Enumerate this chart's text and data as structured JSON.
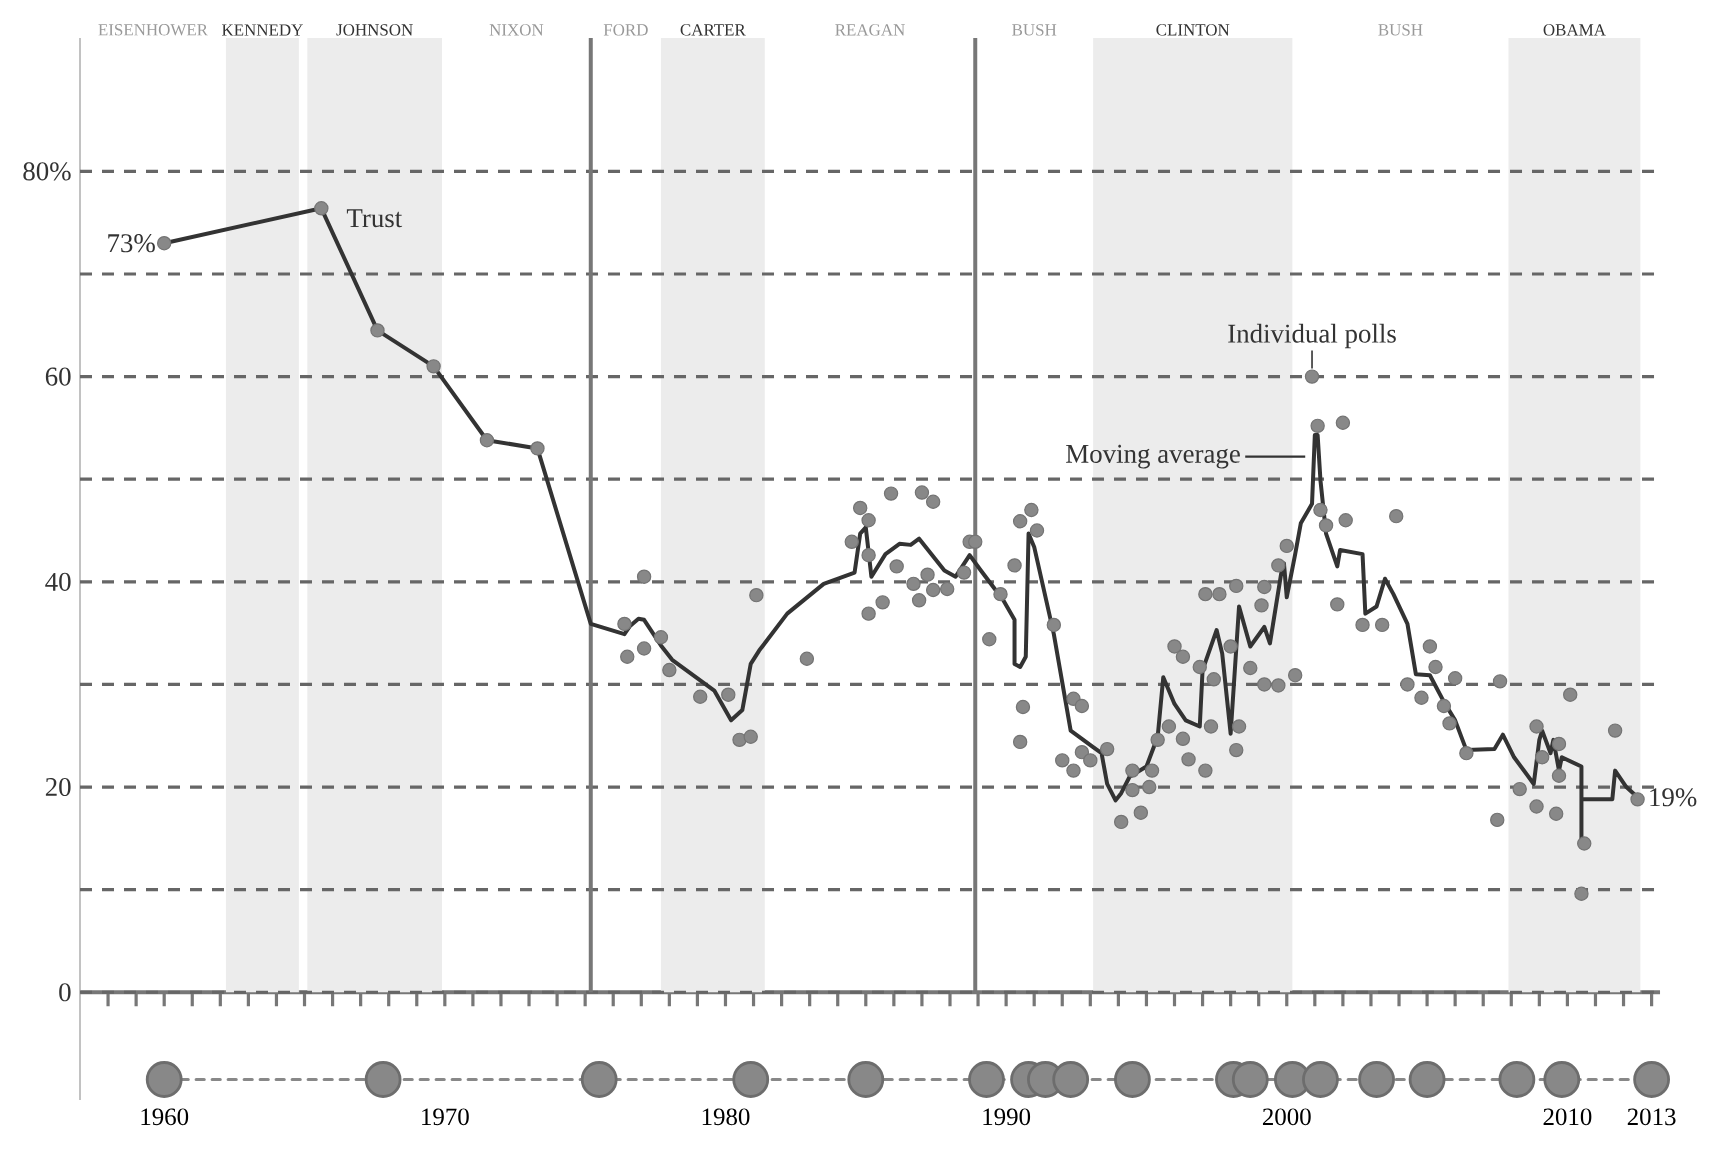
{
  "chart_data": {
    "type": "line",
    "xlim": [
      1957,
      2013.3
    ],
    "ylim": [
      -10.5,
      93
    ],
    "xticks": [
      {
        "value": 1958,
        "label": null
      },
      {
        "value": 1959,
        "label": null
      },
      1960,
      {
        "value": 1961,
        "label": null
      },
      {
        "value": 1962,
        "label": null
      },
      {
        "value": 1963,
        "label": null
      },
      {
        "value": 1964,
        "label": null
      },
      {
        "value": 1965,
        "label": null
      },
      {
        "value": 1966,
        "label": null
      },
      {
        "value": 1967,
        "label": null
      },
      {
        "value": 1968,
        "label": null
      },
      {
        "value": 1969,
        "label": null
      },
      1970,
      {
        "value": 1971,
        "label": null
      },
      {
        "value": 1972,
        "label": null
      },
      {
        "value": 1973,
        "label": null
      },
      {
        "value": 1974,
        "label": null
      },
      {
        "value": 1975,
        "label": null
      },
      {
        "value": 1976,
        "label": null
      },
      {
        "value": 1977,
        "label": null
      },
      {
        "value": 1978,
        "label": null
      },
      {
        "value": 1979,
        "label": null
      },
      1980,
      {
        "value": 1981,
        "label": null
      },
      {
        "value": 1982,
        "label": null
      },
      {
        "value": 1983,
        "label": null
      },
      {
        "value": 1984,
        "label": null
      },
      {
        "value": 1985,
        "label": null
      },
      {
        "value": 1986,
        "label": null
      },
      {
        "value": 1987,
        "label": null
      },
      {
        "value": 1988,
        "label": null
      },
      {
        "value": 1989,
        "label": null
      },
      1990,
      {
        "value": 1991,
        "label": null
      },
      {
        "value": 1992,
        "label": null
      },
      {
        "value": 1993,
        "label": null
      },
      {
        "value": 1994,
        "label": null
      },
      {
        "value": 1995,
        "label": null
      },
      {
        "value": 1996,
        "label": null
      },
      {
        "value": 1997,
        "label": null
      },
      {
        "value": 1998,
        "label": null
      },
      {
        "value": 1999,
        "label": null
      },
      2000,
      {
        "value": 2001,
        "label": null
      },
      {
        "value": 2002,
        "label": null
      },
      {
        "value": 2003,
        "label": null
      },
      {
        "value": 2004,
        "label": null
      },
      {
        "value": 2005,
        "label": null
      },
      {
        "value": 2006,
        "label": null
      },
      {
        "value": 2007,
        "label": null
      },
      {
        "value": 2008,
        "label": null
      },
      {
        "value": 2009,
        "label": null
      },
      2010,
      {
        "value": 2011,
        "label": null
      },
      {
        "value": 2012,
        "label": null
      },
      2013
    ],
    "yticks": [
      0,
      {
        "value": 10,
        "label": null
      },
      20,
      {
        "value": 30,
        "label": null
      },
      40,
      {
        "value": 50,
        "label": null
      },
      60,
      {
        "value": 70,
        "label": null
      },
      {
        "value": 80,
        "label": "80%"
      }
    ],
    "grid": "y",
    "bands": [
      {
        "axis": "x",
        "from": 1962.2,
        "to": 1964.8,
        "label": "KENNEDY",
        "color": "#ececec"
      },
      {
        "axis": "x",
        "from": 1965.1,
        "to": 1969.9,
        "label": "JOHNSON",
        "color": "#ececec"
      },
      {
        "axis": "x",
        "from": 1977.7,
        "to": 1981.4,
        "label": "CARTER",
        "color": "#ececec"
      },
      {
        "axis": "x",
        "from": 1993.1,
        "to": 2000.2,
        "label": "CLINTON",
        "color": "#ececec"
      },
      {
        "axis": "x",
        "from": 2007.9,
        "to": 2012.6,
        "label": "OBAMA",
        "color": "#ececec"
      }
    ],
    "ref_lines": [
      {
        "axis": "x",
        "value": 1975.2,
        "color": "#777777"
      },
      {
        "axis": "x",
        "value": 1988.9,
        "color": "#777777"
      }
    ],
    "annotations": [
      {
        "text": "Moving average",
        "x": 2000.8,
        "y": 52.2
      },
      {
        "text": "Individual polls",
        "x": 2000.9,
        "y": 60.0
      },
      "EISENHOWER",
      "NIXON",
      "FORD",
      "REAGAN",
      "BUSH",
      "BUSH"
    ],
    "series": [
      {
        "type": "scatter",
        "color": "#888888",
        "marker": "circle",
        "x": [
          1960.0,
          1965.6,
          1967.6,
          1969.6,
          1971.5,
          1973.3,
          1976.4,
          1976.5,
          1977.1,
          1977.1,
          1977.7,
          1978.0,
          1979.1,
          1980.1,
          1980.5,
          1980.9,
          1981.1,
          1982.9,
          1984.5,
          1984.8,
          1985.1,
          1985.1,
          1985.1,
          1985.6,
          1985.9,
          1986.1,
          1986.7,
          1986.9,
          1987.0,
          1987.2,
          1987.4,
          1987.4,
          1987.9,
          1988.5,
          1988.7,
          1988.9,
          1989.4,
          1989.8,
          1990.3,
          1990.5,
          1990.6,
          1990.5,
          1990.9,
          1991.1,
          1991.7,
          1992.0,
          1992.4,
          1992.4,
          1992.7,
          1992.7,
          1993.0,
          1993.6,
          1994.1,
          1994.5,
          1994.5,
          1994.8,
          1995.1,
          1995.2,
          1995.4,
          1996.0,
          1996.3,
          1995.8,
          1996.3,
          1996.5,
          1997.1,
          1996.9,
          1997.4,
          1997.3,
          1997.1,
          1997.6,
          1998.2,
          1998.0,
          1998.2,
          1998.3,
          1998.7,
          1999.1,
          1999.2,
          1999.7,
          2000.0,
          1999.2,
          1999.7,
          2000.3,
          2000.9,
          2001.1,
          2002.0,
          2001.2,
          2001.4,
          2002.1,
          2001.8,
          2002.7,
          2003.4,
          2003.9,
          2004.3,
          2004.8,
          2005.1,
          2005.3,
          2005.6,
          2005.8,
          2006.0,
          2006.4,
          2007.6,
          2007.5,
          2008.3,
          2008.9,
          2008.9,
          2009.1,
          2009.6,
          2009.7,
          2009.7,
          2010.1,
          2010.6,
          2010.5,
          2011.7,
          2012.5
        ],
        "values": [
          73,
          76.4,
          64.5,
          61.0,
          53.8,
          53.0,
          35.9,
          32.7,
          40.5,
          33.5,
          34.6,
          31.4,
          28.8,
          29.0,
          24.6,
          24.9,
          38.7,
          32.5,
          43.9,
          47.2,
          46.0,
          42.6,
          36.9,
          38.0,
          48.6,
          41.5,
          39.8,
          38.2,
          48.7,
          40.7,
          47.8,
          39.2,
          39.3,
          40.9,
          43.9,
          43.9,
          34.4,
          38.8,
          41.6,
          45.9,
          27.8,
          24.4,
          47.0,
          45.0,
          35.8,
          22.6,
          28.6,
          21.6,
          27.9,
          23.4,
          22.6,
          23.7,
          16.6,
          21.6,
          19.7,
          17.5,
          20.0,
          21.6,
          24.6,
          33.7,
          32.7,
          25.9,
          24.7,
          22.7,
          21.6,
          31.7,
          30.5,
          25.9,
          38.8,
          38.8,
          39.6,
          33.7,
          23.6,
          25.9,
          31.6,
          37.7,
          39.5,
          41.6,
          43.5,
          30.0,
          29.9,
          30.9,
          60.0,
          55.2,
          55.5,
          47.0,
          45.5,
          46.0,
          37.8,
          35.8,
          35.8,
          46.4,
          30.0,
          28.7,
          33.7,
          31.7,
          27.9,
          26.2,
          30.6,
          23.3,
          30.3,
          16.8,
          19.8,
          25.9,
          18.1,
          22.9,
          17.4,
          24.2,
          21.1,
          29.0,
          14.5,
          9.6,
          25.5,
          18.8
        ]
      },
      {
        "name": "Trust",
        "color": "#333333",
        "marker": "none",
        "line_style": "solid",
        "x": [
          1960.0,
          1965.6,
          1967.6,
          1969.6,
          1971.5,
          1973.3,
          1975.2,
          1976.4,
          1976.6,
          1976.9,
          1977.1,
          1977.7,
          1978.1,
          1979.6,
          1980.2,
          1980.6,
          1980.9,
          1981.2,
          1982.2,
          1983.5,
          1984.6,
          1984.8,
          1985.0,
          1985.2,
          1985.7,
          1986.2,
          1986.6,
          1986.9,
          1987.8,
          1988.2,
          1988.7,
          1989.1,
          1989.9,
          1990.3,
          1990.3,
          1990.5,
          1990.7,
          1990.8,
          1991.0,
          1991.7,
          1992.3,
          1993.1,
          1993.4,
          1993.6,
          1993.9,
          1994.1,
          1994.4,
          1995.0,
          1995.4,
          1995.6,
          1996.0,
          1996.4,
          1996.9,
          1997.0,
          1997.5,
          1997.7,
          1998.0,
          1998.3,
          1998.7,
          1999.2,
          1999.4,
          1999.8,
          1999.9,
          2000.0,
          2000.3,
          2000.5,
          2000.9,
          2001.0,
          2001.1,
          2001.2,
          2001.4,
          2001.8,
          2001.9,
          2002.7,
          2002.8,
          2003.2,
          2003.5,
          2003.8,
          2004.3,
          2004.6,
          2005.1,
          2005.6,
          2006.0,
          2006.4,
          2007.4,
          2007.7,
          2008.1,
          2008.8,
          2009.0,
          2009.1,
          2009.4,
          2009.5,
          2009.7,
          2009.8,
          2010.5,
          2010.5,
          2010.5,
          2011.6,
          2011.7,
          2012.1,
          2012.5
        ],
        "values": [
          73,
          76.4,
          64.5,
          61.0,
          53.8,
          53.0,
          35.9,
          34.9,
          35.7,
          36.4,
          36.3,
          33.8,
          32.4,
          29.4,
          26.5,
          27.5,
          32.0,
          33.3,
          36.9,
          39.8,
          40.9,
          44.7,
          45.3,
          40.5,
          42.7,
          43.7,
          43.6,
          44.2,
          41.1,
          40.5,
          42.6,
          41.1,
          38.2,
          36.3,
          32.0,
          31.7,
          32.7,
          44.7,
          43.4,
          34.9,
          25.5,
          23.9,
          23.3,
          20.3,
          18.7,
          19.4,
          21.0,
          22.0,
          24.9,
          30.7,
          28.1,
          26.5,
          25.9,
          31.4,
          35.3,
          33.0,
          25.2,
          37.6,
          33.7,
          35.6,
          34.0,
          40.8,
          41.8,
          38.5,
          42.7,
          45.7,
          47.6,
          54.3,
          54.3,
          49.9,
          44.7,
          41.5,
          43.1,
          42.7,
          36.9,
          37.6,
          40.3,
          38.8,
          35.9,
          31.0,
          30.9,
          28.3,
          26.5,
          23.6,
          23.7,
          25.1,
          22.9,
          20.3,
          24.6,
          25.5,
          23.3,
          24.6,
          21.6,
          22.9,
          22.0,
          14.2,
          18.8,
          18.8,
          21.6,
          20.0,
          19
        ],
        "value_labels": [
          "73%",
          null,
          null,
          null,
          null,
          null,
          null,
          null,
          null,
          null,
          null,
          null,
          null,
          null,
          null,
          null,
          null,
          null,
          null,
          null,
          null,
          null,
          null,
          null,
          null,
          null,
          null,
          null,
          null,
          null,
          null,
          null,
          null,
          null,
          null,
          null,
          null,
          null,
          null,
          null,
          null,
          null,
          null,
          null,
          null,
          null,
          null,
          null,
          null,
          null,
          null,
          null,
          null,
          null,
          null,
          null,
          null,
          null,
          null,
          null,
          null,
          null,
          null,
          null,
          null,
          null,
          null,
          null,
          null,
          null,
          null,
          null,
          null,
          null,
          null,
          null,
          null,
          null,
          null,
          null,
          null,
          null,
          null,
          null,
          null,
          null,
          null,
          null,
          null,
          null,
          null,
          null,
          null,
          null,
          null,
          null,
          null,
          null,
          null,
          null,
          "19%"
        ]
      },
      {
        "color": "#888888",
        "marker": "circle",
        "line_style": "dashed",
        "x": [
          1960.0,
          1967.8,
          1975.5,
          1980.9,
          1985.0,
          1989.3,
          1990.8,
          1991.4,
          1992.3,
          1994.5,
          1998.1,
          1998.7,
          2000.2,
          2001.2,
          2003.2,
          2005.0,
          2008.2,
          2009.8,
          2013.0
        ],
        "values": [
          -8.5,
          -8.5,
          -8.5,
          -8.5,
          -8.5,
          -8.5,
          -8.5,
          -8.5,
          -8.5,
          -8.5,
          -8.5,
          -8.5,
          -8.5,
          -8.5,
          -8.5,
          -8.5,
          -8.5,
          -8.5,
          -8.5
        ]
      }
    ]
  }
}
